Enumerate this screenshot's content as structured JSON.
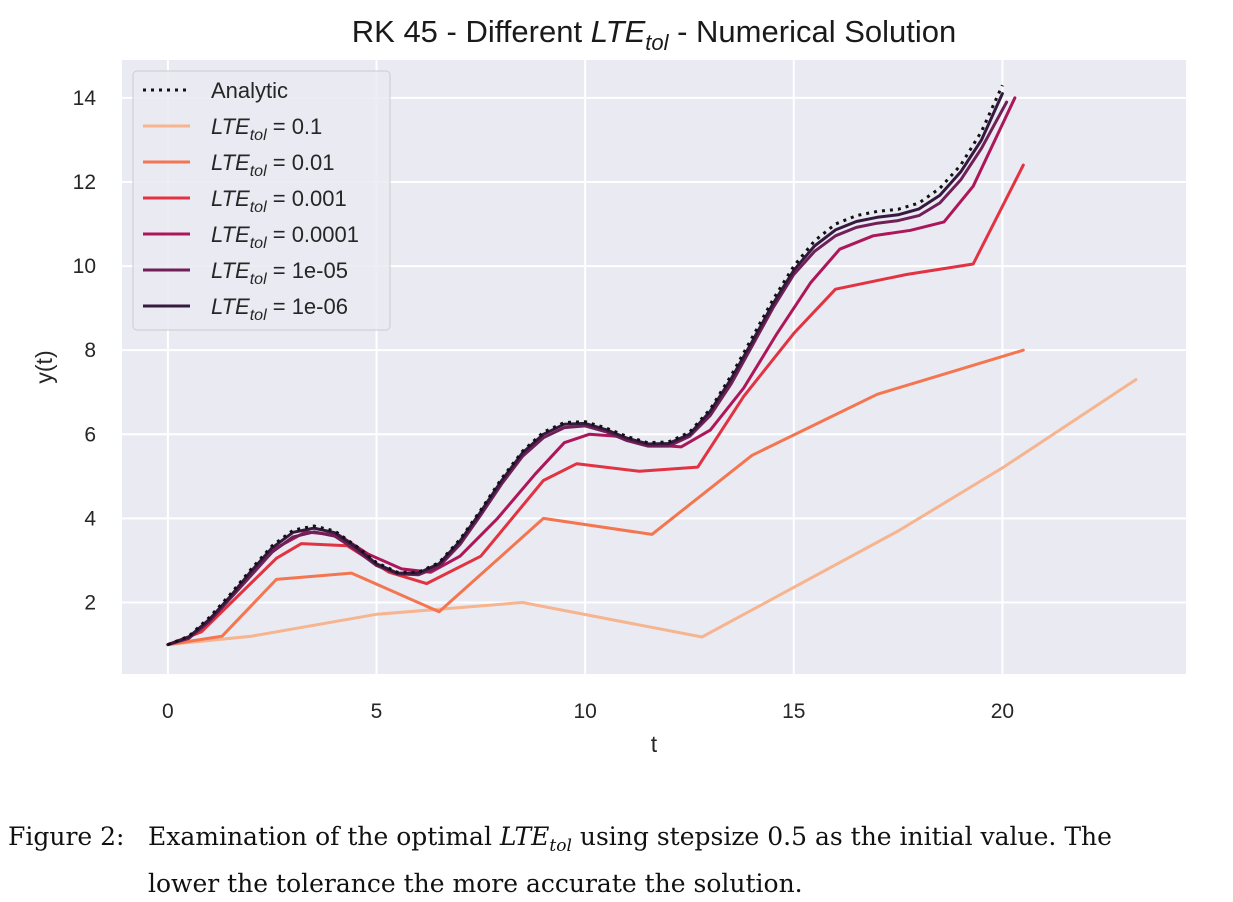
{
  "chart_data": {
    "type": "line",
    "title_parts": [
      "RK 45 - Different ",
      "LTE",
      "tol",
      " - Numerical Solution"
    ],
    "xlabel": "t",
    "ylabel": "y(t)",
    "xlim": [
      -1.1,
      24.4
    ],
    "ylim": [
      0.3,
      14.9
    ],
    "xticks": [
      0,
      5,
      10,
      15,
      20
    ],
    "yticks": [
      2,
      4,
      6,
      8,
      10,
      12,
      14
    ],
    "grid": true,
    "legend_position": "top-left",
    "series": [
      {
        "name": "Analytic",
        "label_prefix": "",
        "label_value": "Analytic",
        "color": "#111111",
        "dashed": true,
        "x": [
          0,
          0.5,
          1,
          1.5,
          2,
          2.5,
          3,
          3.5,
          4,
          4.5,
          5,
          5.5,
          6,
          6.5,
          7,
          7.5,
          8,
          8.5,
          9,
          9.5,
          10,
          10.5,
          11,
          11.5,
          12,
          12.5,
          13,
          13.5,
          14,
          14.5,
          15,
          15.5,
          16,
          16.5,
          17,
          17.5,
          18,
          18.5,
          19,
          19.5,
          20
        ],
        "y": [
          1,
          1.2,
          1.65,
          2.2,
          2.8,
          3.35,
          3.72,
          3.82,
          3.7,
          3.35,
          2.95,
          2.72,
          2.72,
          2.95,
          3.5,
          4.2,
          4.95,
          5.6,
          6.05,
          6.28,
          6.3,
          6.15,
          5.95,
          5.8,
          5.82,
          6.05,
          6.6,
          7.4,
          8.3,
          9.2,
          10.0,
          10.6,
          11.0,
          11.2,
          11.3,
          11.35,
          11.5,
          11.85,
          12.4,
          13.2,
          14.3
        ]
      },
      {
        "name": "LTE_tol = 0.1",
        "label_prefix": "LTE",
        "label_value": " = 0.1",
        "color": "#f6b48f",
        "dashed": false,
        "x": [
          0,
          2,
          5,
          8.5,
          12.8,
          17.5,
          20,
          23.2
        ],
        "y": [
          1,
          1.2,
          1.72,
          2.0,
          1.18,
          3.7,
          5.2,
          7.3
        ]
      },
      {
        "name": "LTE_tol = 0.01",
        "label_prefix": "LTE",
        "label_value": " = 0.01",
        "color": "#f37651",
        "dashed": false,
        "x": [
          0,
          1.3,
          2.6,
          4.4,
          6.5,
          9,
          11.6,
          14,
          17,
          20.5
        ],
        "y": [
          1,
          1.2,
          2.55,
          2.7,
          1.78,
          4.0,
          3.62,
          5.5,
          6.95,
          8.0
        ]
      },
      {
        "name": "LTE_tol = 0.001",
        "label_prefix": "LTE",
        "label_value": " = 0.001",
        "color": "#e13342",
        "dashed": false,
        "x": [
          0,
          0.8,
          2.6,
          3.2,
          4.3,
          5.3,
          6.2,
          7.5,
          9,
          9.8,
          11.3,
          12.7,
          13.8,
          15,
          16,
          17.7,
          19.3,
          20.5
        ],
        "y": [
          1,
          1.3,
          3.05,
          3.4,
          3.35,
          2.72,
          2.45,
          3.1,
          4.9,
          5.3,
          5.12,
          5.22,
          6.9,
          8.4,
          9.45,
          9.8,
          10.05,
          12.4
        ]
      },
      {
        "name": "LTE_tol = 0.0001",
        "label_prefix": "LTE",
        "label_value": " = 0.0001",
        "color": "#ad1759",
        "dashed": false,
        "x": [
          0,
          0.5,
          1.1,
          2,
          2.6,
          3.3,
          4.1,
          4.8,
          5.6,
          6.3,
          7,
          7.9,
          8.8,
          9.5,
          10.1,
          10.8,
          11.6,
          12.3,
          13,
          13.8,
          14.6,
          15.4,
          16.1,
          16.9,
          17.8,
          18.6,
          19.3,
          20.3
        ],
        "y": [
          1,
          1.15,
          1.7,
          2.7,
          3.3,
          3.68,
          3.6,
          3.15,
          2.8,
          2.72,
          3.1,
          4.0,
          5.05,
          5.8,
          6.0,
          5.95,
          5.75,
          5.7,
          6.1,
          7.1,
          8.4,
          9.6,
          10.4,
          10.72,
          10.85,
          11.05,
          11.9,
          14.0
        ]
      },
      {
        "name": "LTE_tol = 1e-05",
        "label_prefix": "LTE",
        "label_value": " = 1e-05",
        "color": "#701f57",
        "dashed": false,
        "x": [
          0,
          0.5,
          1,
          1.5,
          2,
          2.5,
          3,
          3.5,
          4,
          4.5,
          5,
          5.5,
          6,
          6.5,
          7,
          7.5,
          8,
          8.5,
          9,
          9.5,
          10,
          10.5,
          11,
          11.5,
          12,
          12.5,
          13,
          13.5,
          14,
          14.5,
          15,
          15.5,
          16,
          16.5,
          17,
          17.5,
          18,
          18.5,
          19,
          19.5,
          20.1
        ],
        "y": [
          1,
          1.15,
          1.55,
          2.1,
          2.65,
          3.2,
          3.56,
          3.68,
          3.58,
          3.25,
          2.88,
          2.68,
          2.66,
          2.86,
          3.38,
          4.08,
          4.82,
          5.48,
          5.92,
          6.16,
          6.2,
          6.06,
          5.85,
          5.72,
          5.72,
          5.95,
          6.45,
          7.2,
          8.1,
          9.0,
          9.8,
          10.35,
          10.72,
          10.92,
          11.02,
          11.08,
          11.2,
          11.5,
          12.05,
          12.8,
          13.9
        ]
      },
      {
        "name": "LTE_tol = 1e-06",
        "label_prefix": "LTE",
        "label_value": " = 1e-06",
        "color": "#35193e",
        "dashed": false,
        "x": [
          0,
          0.5,
          1,
          1.5,
          2,
          2.5,
          3,
          3.5,
          4,
          4.5,
          5,
          5.5,
          6,
          6.5,
          7,
          7.5,
          8,
          8.5,
          9,
          9.5,
          10,
          10.5,
          11,
          11.5,
          12,
          12.5,
          13,
          13.5,
          14,
          14.5,
          15,
          15.5,
          16,
          16.5,
          17,
          17.5,
          18,
          18.5,
          19,
          19.5,
          20
        ],
        "y": [
          1,
          1.18,
          1.6,
          2.15,
          2.75,
          3.3,
          3.67,
          3.77,
          3.66,
          3.32,
          2.92,
          2.7,
          2.7,
          2.92,
          3.46,
          4.16,
          4.9,
          5.56,
          6.0,
          6.24,
          6.26,
          6.11,
          5.91,
          5.77,
          5.78,
          6.0,
          6.55,
          7.32,
          8.2,
          9.1,
          9.9,
          10.48,
          10.86,
          11.06,
          11.16,
          11.22,
          11.36,
          11.68,
          12.24,
          13.0,
          14.1
        ]
      }
    ]
  },
  "caption": {
    "prefix": "Figure 2:",
    "line1_a": "Examination of the optimal ",
    "lte": "LTE",
    "tol": "tol",
    "line1_b": " using stepsize 0.5 as the initial value.  The",
    "line2": "lower the tolerance the more accurate the solution."
  }
}
